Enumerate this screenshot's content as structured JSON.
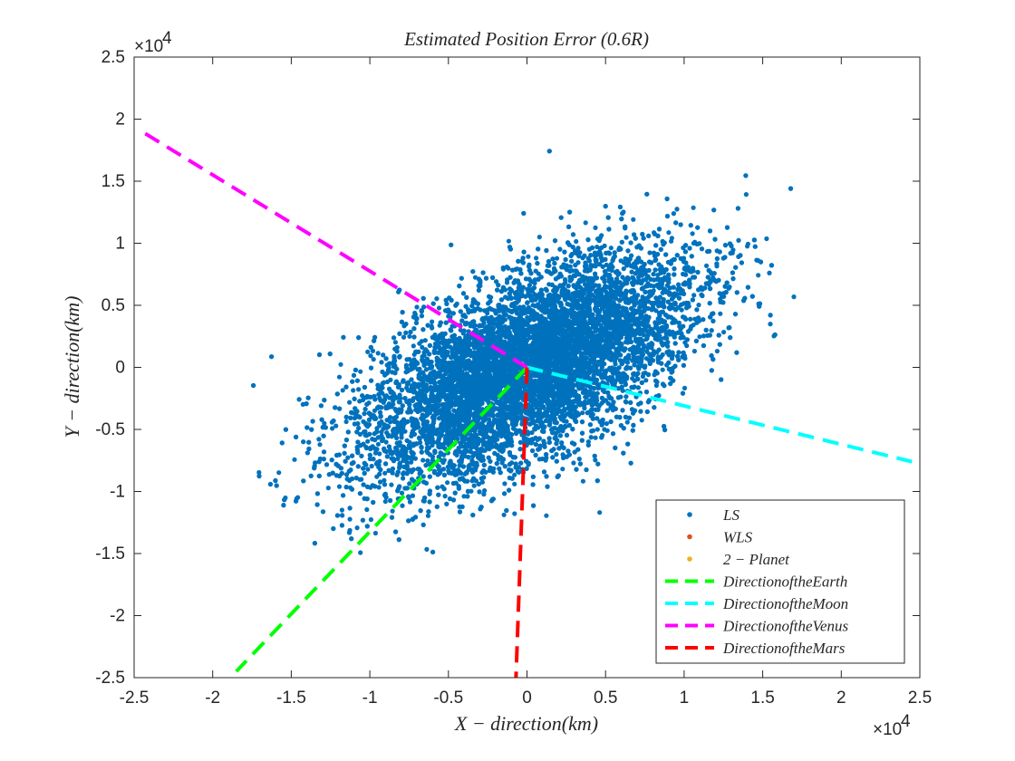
{
  "chart_data": {
    "type": "scatter",
    "title": "Estimated Position Error (0.6R)",
    "xlabel": "X − direction(km)",
    "ylabel": "Y − direction(km)",
    "xlim": [
      -25000,
      25000
    ],
    "ylim": [
      -25000,
      25000
    ],
    "x_ticks": [
      "-2.5",
      "-2",
      "-1.5",
      "-1",
      "-0.5",
      "0",
      "0.5",
      "1",
      "1.5",
      "2",
      "2.5"
    ],
    "y_ticks": [
      "-2.5",
      "-2",
      "-1.5",
      "-1",
      "-0.5",
      "0",
      "0.5",
      "1",
      "1.5",
      "2",
      "2.5"
    ],
    "x_multiplier": {
      "base": "×10",
      "exp": "4"
    },
    "y_multiplier": {
      "base": "×10",
      "exp": "4"
    },
    "grid": false,
    "legend_position": "bottom-right",
    "scatter_cloud": {
      "series": "LS",
      "center": [
        0,
        0
      ],
      "principal_angle_deg": 38,
      "sigma_major_km": 6200,
      "sigma_minor_km": 3000,
      "approx_point_count": 12000,
      "extent_x": [
        -18500,
        17000
      ],
      "extent_y": [
        -16000,
        18200
      ]
    },
    "series": [
      {
        "name": "LS",
        "kind": "points",
        "color": "#0072BD"
      },
      {
        "name": "WLS",
        "kind": "points",
        "color": "#D95319"
      },
      {
        "name": "2 − Planet",
        "kind": "points",
        "color": "#EDB120"
      },
      {
        "name": "DirectionoftheEarth",
        "kind": "dashed-line",
        "color": "#00FF00",
        "x": [
          0,
          -18500
        ],
        "y": [
          0,
          -24500
        ]
      },
      {
        "name": "DirectionoftheMoon",
        "kind": "dashed-line",
        "color": "#00FFFF",
        "x": [
          0,
          24500
        ],
        "y": [
          0,
          -7600
        ]
      },
      {
        "name": "DirectionoftheVenus",
        "kind": "dashed-line",
        "color": "#FF00FF",
        "x": [
          0,
          -24500
        ],
        "y": [
          0,
          19000
        ]
      },
      {
        "name": "DirectionoftheMars",
        "kind": "dashed-line",
        "color": "#FF0000",
        "x": [
          0,
          -700
        ],
        "y": [
          0,
          -25000
        ]
      }
    ]
  }
}
